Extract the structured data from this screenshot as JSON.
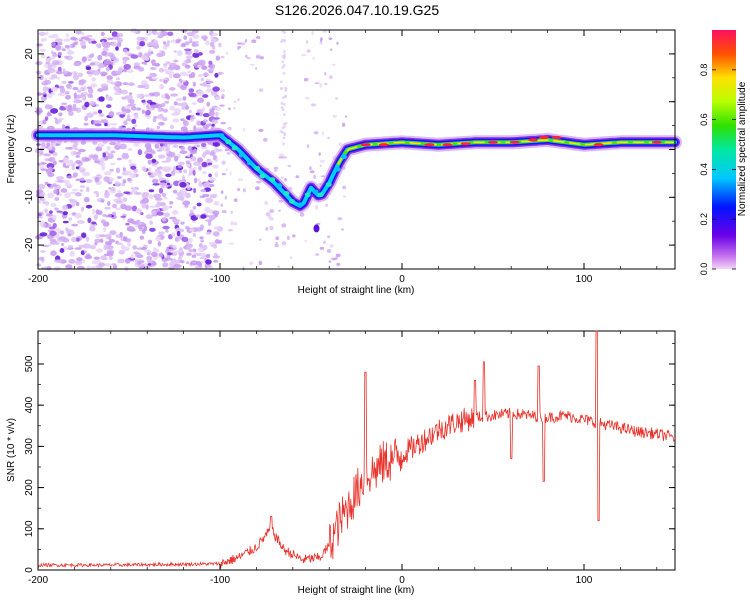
{
  "figure": {
    "title": "S126.2026.047.10.19.G25"
  },
  "chart_data": [
    {
      "type": "heatmap",
      "xlabel": "Height of straight line (km)",
      "ylabel": "Frequency (Hz)",
      "xlim": [
        -200,
        150
      ],
      "ylim": [
        -25,
        25
      ],
      "xticks": [
        -200,
        -100,
        0,
        100
      ],
      "yticks": [
        -20,
        -10,
        0,
        10,
        20
      ],
      "colorbar": {
        "label": "Normalized spectral amplitude",
        "range": [
          0,
          0.96
        ],
        "ticks": [
          0.0,
          0.2,
          0.4,
          0.6,
          0.8
        ],
        "tick_labels": [
          "0.0",
          "0.2",
          "0.4",
          "0.6",
          "0.8"
        ]
      },
      "ridge": {
        "x": [
          -200,
          -160,
          -120,
          -100,
          -90,
          -80,
          -70,
          -60,
          -55,
          -50,
          -45,
          -40,
          -35,
          -30,
          -20,
          0,
          20,
          40,
          60,
          80,
          100,
          120,
          150
        ],
        "y": [
          3,
          3,
          2.5,
          3,
          0,
          -4,
          -7,
          -11,
          -12,
          -8,
          -10,
          -7,
          -3,
          0,
          1,
          1.5,
          1,
          1.5,
          1.5,
          2,
          1,
          1.5,
          1.5
        ]
      }
    },
    {
      "type": "line",
      "xlabel": "Height of straight line (km)",
      "ylabel": "SNR (10 * v/v)",
      "xlim": [
        -200,
        150
      ],
      "ylim": [
        0,
        580
      ],
      "xticks": [
        -200,
        -100,
        0,
        100
      ],
      "yticks": [
        0,
        100,
        200,
        300,
        400,
        500
      ],
      "color": "#e8322b",
      "series": [
        {
          "name": "SNR",
          "x": [
            -200,
            -160,
            -120,
            -100,
            -90,
            -80,
            -72,
            -65,
            -55,
            -45,
            -40,
            -35,
            -30,
            -25,
            -20,
            -15,
            -10,
            -5,
            0,
            10,
            20,
            30,
            40,
            50,
            60,
            70,
            80,
            90,
            100,
            110,
            120,
            130,
            140,
            150
          ],
          "y": [
            12,
            12,
            14,
            15,
            30,
            55,
            100,
            50,
            25,
            30,
            60,
            110,
            150,
            190,
            230,
            240,
            260,
            270,
            280,
            310,
            340,
            360,
            370,
            375,
            380,
            375,
            370,
            375,
            365,
            355,
            345,
            335,
            330,
            322
          ]
        }
      ],
      "spikes": {
        "x": [
          -72,
          -20,
          40,
          45,
          75,
          107
        ],
        "y": [
          130,
          480,
          460,
          505,
          495,
          580
        ],
        "dips_x": [
          60,
          78,
          108
        ],
        "dips_y": [
          270,
          215,
          120
        ]
      }
    }
  ]
}
